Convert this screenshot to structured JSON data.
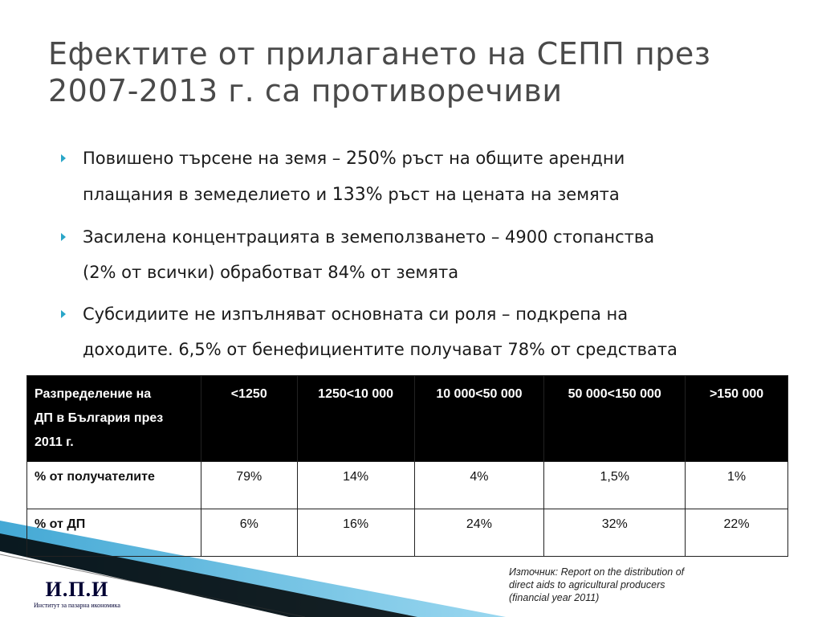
{
  "title": {
    "line1": "Ефектите от прилагането на СЕПП през",
    "line2": "2007-2013 г. са противоречиви"
  },
  "bullets": [
    {
      "line1": [
        "Повишено търсене на земя – ",
        "250%",
        " ръст на общите арендни"
      ],
      "line2": [
        "плащания в земеделието и ",
        "133%",
        " ръст на цената на земята"
      ]
    },
    {
      "line1": "Засилена концентрацията в земеползването – 4900 стопанства",
      "line2": "(2% от всички) обработват 84% от земята"
    },
    {
      "line1": "Субсидиите не изпълняват основната си роля – подкрепа на",
      "line2": "доходите. 6,5% от бенефициентите получават 78% от средствата"
    }
  ],
  "table": {
    "header_title_lines": [
      "Разпределение на",
      "ДП в България през",
      "2011 г."
    ],
    "columns": [
      "<1250",
      "1250<10 000",
      "10 000<50 000",
      "50 000<150 000",
      ">150 000"
    ],
    "rows": [
      {
        "label": "% от получателите",
        "values": [
          "79%",
          "14%",
          "4%",
          "1,5%",
          "1%"
        ]
      },
      {
        "label": "% от ДП",
        "values": [
          "6%",
          "16%",
          "24%",
          "32%",
          "22%"
        ]
      }
    ]
  },
  "source": {
    "lines": [
      "Източник: Report on the distribution of",
      "direct aids to agricultural producers",
      "(financial year 2011)"
    ]
  },
  "logo": {
    "main": "И.П.И",
    "sub": "Институт за пазарна икономика"
  },
  "colors": {
    "bullet_marker": "#2aa6c8",
    "title": "#4a4a4a",
    "table_header_bg": "#000000",
    "deco_blue": "#3aa8d6"
  }
}
